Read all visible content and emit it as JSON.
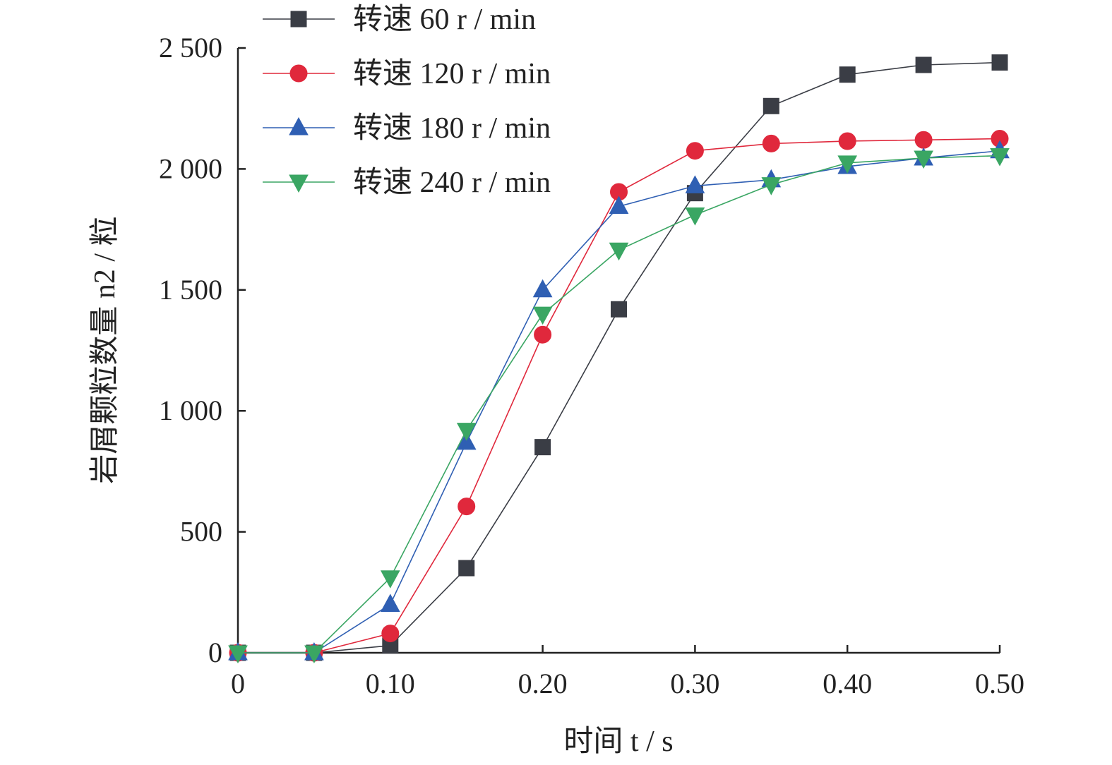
{
  "chart_data": {
    "type": "line",
    "x": [
      0,
      0.05,
      0.1,
      0.15,
      0.2,
      0.25,
      0.3,
      0.35,
      0.4,
      0.45,
      0.5
    ],
    "xlim": [
      0,
      0.5
    ],
    "ylim": [
      0,
      2500
    ],
    "xticks": [
      0,
      0.1,
      0.2,
      0.3,
      0.4,
      0.5
    ],
    "xtick_labels": [
      "0",
      "0.10",
      "0.20",
      "0.30",
      "0.40",
      "0.50"
    ],
    "yticks": [
      0,
      500,
      1000,
      1500,
      2000,
      2500
    ],
    "ytick_labels": [
      "0",
      "500",
      "1 000",
      "1 500",
      "2 000",
      "2 500"
    ],
    "xlabel": "时间 t / s",
    "ylabel": "岩屑颗粒数量 n2 / 粒",
    "legend_position": "top-left",
    "series": [
      {
        "name": "转速 60 r / min",
        "marker": "square",
        "color": "#3a3d45",
        "values": [
          0,
          0,
          30,
          350,
          850,
          1420,
          1900,
          2260,
          2390,
          2430,
          2440
        ]
      },
      {
        "name": "转速 120 r / min",
        "marker": "circle",
        "color": "#e0283c",
        "values": [
          0,
          0,
          80,
          605,
          1315,
          1905,
          2075,
          2105,
          2115,
          2120,
          2125
        ]
      },
      {
        "name": "转速 180 r / min",
        "marker": "triangle-up",
        "color": "#2f5fb3",
        "values": [
          0,
          0,
          200,
          870,
          1500,
          1845,
          1930,
          1955,
          2010,
          2045,
          2075
        ]
      },
      {
        "name": "转速 240 r / min",
        "marker": "triangle-down",
        "color": "#3aa663",
        "values": [
          0,
          0,
          310,
          920,
          1400,
          1665,
          1810,
          1935,
          2025,
          2045,
          2055
        ]
      }
    ]
  }
}
